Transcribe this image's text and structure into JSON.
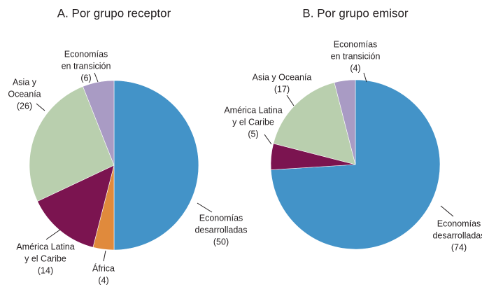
{
  "chart_data": [
    {
      "type": "pie",
      "title": "A. Por grupo receptor",
      "categories": [
        [
          "Economías",
          "desarrolladas"
        ],
        [
          "África"
        ],
        [
          "América Latina",
          "y el Caribe"
        ],
        [
          "Asia y",
          "Oceanía"
        ],
        [
          "Economías",
          "en transición"
        ]
      ],
      "values": [
        50,
        4,
        14,
        26,
        6
      ],
      "value_labels": [
        "(50)",
        "(4)",
        "(14)",
        "(26)",
        "(6)"
      ],
      "colors": [
        "#4393c8",
        "#e08a3c",
        "#7b1450",
        "#b9cfae",
        "#a99bc4"
      ]
    },
    {
      "type": "pie",
      "title": "B. Por grupo emisor",
      "categories": [
        [
          "Economías",
          "desarrolladas"
        ],
        [
          "América Latina",
          "y el Caribe"
        ],
        [
          "Asia y Oceanía"
        ],
        [
          "Economías",
          "en transición"
        ]
      ],
      "values": [
        74,
        5,
        17,
        4
      ],
      "value_labels": [
        "(74)",
        "(5)",
        "(17)",
        "(4)"
      ],
      "colors": [
        "#4393c8",
        "#7b1450",
        "#b9cfae",
        "#a99bc4"
      ]
    }
  ]
}
